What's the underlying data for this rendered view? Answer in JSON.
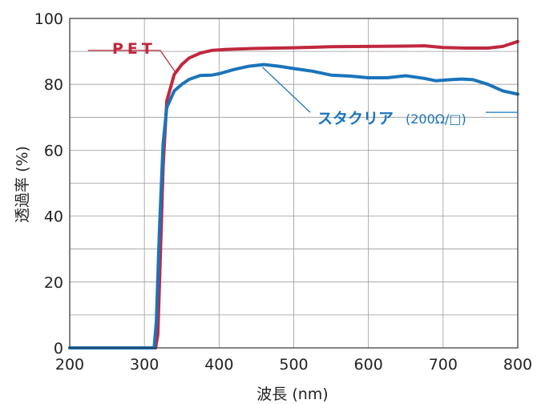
{
  "chart_data": {
    "type": "line",
    "xlabel": "波長 (nm)",
    "ylabel": "透過率 (%)",
    "xlim": [
      200,
      800
    ],
    "ylim": [
      0,
      100
    ],
    "xticks": [
      200,
      300,
      400,
      500,
      600,
      700,
      800
    ],
    "yticks": [
      0,
      20,
      40,
      60,
      80,
      100
    ],
    "grid": true,
    "colors": {
      "pet": "#c0283e",
      "sc": "#1a74bb",
      "grid": "#9a9a9a",
      "frame": "#333333"
    },
    "series": [
      {
        "name": "PET",
        "x": [
          200,
          315,
          318,
          321,
          325,
          330,
          340,
          350,
          360,
          375,
          390,
          410,
          450,
          500,
          550,
          600,
          650,
          675,
          700,
          730,
          760,
          780,
          800
        ],
        "y": [
          0,
          0,
          4,
          25,
          55,
          75,
          83,
          86,
          88,
          89.5,
          90.3,
          90.6,
          90.9,
          91.1,
          91.4,
          91.5,
          91.6,
          91.7,
          91.2,
          91.0,
          91.0,
          91.5,
          93
        ]
      },
      {
        "name": "スタクリア",
        "sub": "(200Ω/□)",
        "x": [
          200,
          310,
          313,
          316,
          320,
          325,
          330,
          340,
          350,
          360,
          375,
          390,
          400,
          420,
          440,
          460,
          480,
          500,
          525,
          550,
          575,
          600,
          625,
          650,
          675,
          690,
          710,
          725,
          740,
          760,
          780,
          800
        ],
        "y": [
          0,
          0,
          0,
          8,
          35,
          62,
          73,
          78,
          80,
          81.5,
          82.7,
          82.8,
          83.2,
          84.5,
          85.5,
          86,
          85.5,
          84.8,
          84.0,
          82.8,
          82.5,
          82,
          82,
          82.6,
          81.8,
          81.1,
          81.4,
          81.6,
          81.4,
          80,
          78,
          77
        ]
      }
    ]
  }
}
